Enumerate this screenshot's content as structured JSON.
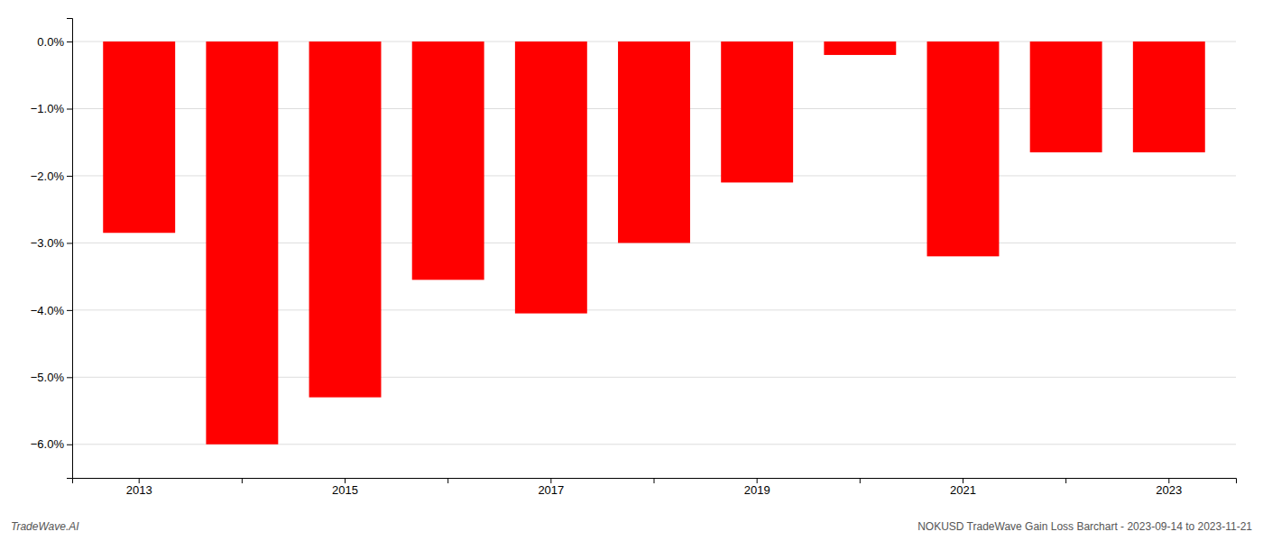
{
  "chart_data": {
    "type": "bar",
    "categories": [
      "2013",
      null,
      "2015",
      null,
      "2017",
      null,
      "2019",
      null,
      "2021",
      null,
      "2023"
    ],
    "values": [
      -2.85,
      -6.0,
      -5.3,
      -3.55,
      -4.05,
      -3.0,
      -2.1,
      -0.2,
      -3.2,
      -1.65,
      -1.65
    ],
    "color": "#ff0000",
    "ylim": [
      -6.5,
      0.35
    ],
    "yticks": [
      {
        "value": 0.0,
        "label": "0.0%"
      },
      {
        "value": -1.0,
        "label": "−1.0%"
      },
      {
        "value": -2.0,
        "label": "−2.0%"
      },
      {
        "value": -3.0,
        "label": "−3.0%"
      },
      {
        "value": -4.0,
        "label": "−4.0%"
      },
      {
        "value": -5.0,
        "label": "−5.0%"
      },
      {
        "value": -6.0,
        "label": "−6.0%"
      }
    ],
    "grid": true,
    "annotations": [
      "TradeWave.AI",
      "NOKUSD TradeWave Gain Loss Barchart - 2023-09-14 to 2023-11-21"
    ]
  }
}
